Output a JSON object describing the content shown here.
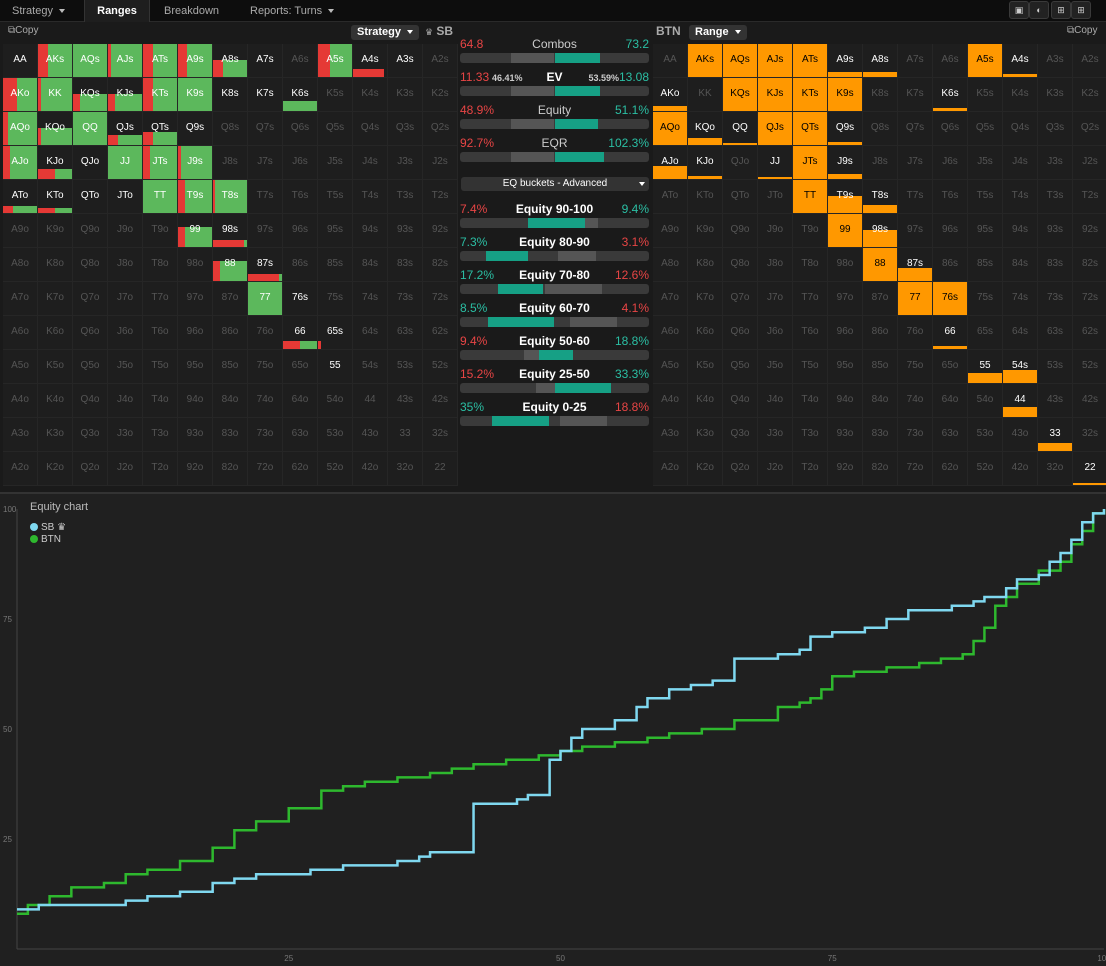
{
  "tabs": [
    {
      "label": "Strategy",
      "caret": true
    },
    {
      "label": "Ranges",
      "active": true
    },
    {
      "label": "Breakdown"
    },
    {
      "label": "Reports: Turns",
      "caret": true
    }
  ],
  "left": {
    "copy": "Copy",
    "dropdown": "Strategy",
    "player": "SB"
  },
  "right": {
    "copy": "Copy",
    "dropdown": "Range",
    "player": "BTN"
  },
  "crown_icon": "crown-icon",
  "colors": {
    "bet": "#5cb85c",
    "fold": "#e53935",
    "range": "#ff9800",
    "sb": "#7fd8f0",
    "btn": "#2eb82e",
    "teal": "#16a085"
  },
  "grid_labels": [
    [
      "AA",
      "AKs",
      "AQs",
      "AJs",
      "ATs",
      "A9s",
      "A8s",
      "A7s",
      "A6s",
      "A5s",
      "A4s",
      "A3s",
      "A2s"
    ],
    [
      "AKo",
      "KK",
      "KQs",
      "KJs",
      "KTs",
      "K9s",
      "K8s",
      "K7s",
      "K6s",
      "K5s",
      "K4s",
      "K3s",
      "K2s"
    ],
    [
      "AQo",
      "KQo",
      "QQ",
      "QJs",
      "QTs",
      "Q9s",
      "Q8s",
      "Q7s",
      "Q6s",
      "Q5s",
      "Q4s",
      "Q3s",
      "Q2s"
    ],
    [
      "AJo",
      "KJo",
      "QJo",
      "JJ",
      "JTs",
      "J9s",
      "J8s",
      "J7s",
      "J6s",
      "J5s",
      "J4s",
      "J3s",
      "J2s"
    ],
    [
      "ATo",
      "KTo",
      "QTo",
      "JTo",
      "TT",
      "T9s",
      "T8s",
      "T7s",
      "T6s",
      "T5s",
      "T4s",
      "T3s",
      "T2s"
    ],
    [
      "A9o",
      "K9o",
      "Q9o",
      "J9o",
      "T9o",
      "99",
      "98s",
      "97s",
      "96s",
      "95s",
      "94s",
      "93s",
      "92s"
    ],
    [
      "A8o",
      "K8o",
      "Q8o",
      "J8o",
      "T8o",
      "98o",
      "88",
      "87s",
      "86s",
      "85s",
      "84s",
      "83s",
      "82s"
    ],
    [
      "A7o",
      "K7o",
      "Q7o",
      "J7o",
      "T7o",
      "97o",
      "87o",
      "77",
      "76s",
      "75s",
      "74s",
      "73s",
      "72s"
    ],
    [
      "A6o",
      "K6o",
      "Q6o",
      "J6o",
      "T6o",
      "96o",
      "86o",
      "76o",
      "66",
      "65s",
      "64s",
      "63s",
      "62s"
    ],
    [
      "A5o",
      "K5o",
      "Q5o",
      "J5o",
      "T5o",
      "95o",
      "85o",
      "75o",
      "65o",
      "55",
      "54s",
      "53s",
      "52s"
    ],
    [
      "A4o",
      "K4o",
      "Q4o",
      "J4o",
      "T4o",
      "94o",
      "84o",
      "74o",
      "64o",
      "54o",
      "44",
      "43s",
      "42s"
    ],
    [
      "A3o",
      "K3o",
      "Q3o",
      "J3o",
      "T3o",
      "93o",
      "83o",
      "73o",
      "63o",
      "53o",
      "43o",
      "33",
      "32s"
    ],
    [
      "A2o",
      "K2o",
      "Q2o",
      "J2o",
      "T2o",
      "92o",
      "82o",
      "72o",
      "62o",
      "52o",
      "42o",
      "32o",
      "22"
    ]
  ],
  "sb_strategy": {
    "AA": [
      0.05,
      0.0,
      0.0
    ],
    "AKs": [
      1,
      0.3,
      0.8
    ],
    "AQs": [
      1,
      0.0,
      1.0
    ],
    "AJs": [
      1,
      0.1,
      1.0
    ],
    "ATs": [
      1,
      0.3,
      1.0
    ],
    "A9s": [
      1,
      0.25,
      1.0
    ],
    "A8s": [
      0.5,
      0.3,
      0.9
    ],
    "A7s": [
      0.15,
      0.0,
      0.0
    ],
    "A5s": [
      1,
      0.35,
      0.65
    ],
    "A4s": [
      0.25,
      0.9,
      0.0
    ],
    "A3s": [
      0.1,
      0.0,
      0.0
    ],
    "AKo": [
      1,
      0.4,
      0.6
    ],
    "KK": [
      1,
      0.1,
      1.0
    ],
    "KQs": [
      0.5,
      0.2,
      0.8
    ],
    "KJs": [
      0.5,
      0.2,
      0.6
    ],
    "KTs": [
      1,
      0.3,
      0.7
    ],
    "K9s": [
      1,
      0.0,
      1.0
    ],
    "K8s": [
      0.1,
      0.0,
      0.0
    ],
    "K7s": [
      0.15,
      0.0,
      0.0
    ],
    "K6s": [
      0.3,
      0.0,
      1.0
    ],
    "AQo": [
      1,
      0.15,
      0.85
    ],
    "KQo": [
      0.5,
      0.1,
      0.9
    ],
    "QQ": [
      1,
      0.0,
      1.0
    ],
    "QJs": [
      0.3,
      0.3,
      0.7
    ],
    "QTs": [
      0.4,
      0.3,
      0.7
    ],
    "Q9s": [
      0.1,
      0.0,
      0.0
    ],
    "AJo": [
      1,
      0.2,
      0.8
    ],
    "KJo": [
      0.3,
      0.5,
      0.5
    ],
    "QJo": [
      0,
      0,
      0
    ],
    "JJ": [
      1,
      0.0,
      1.0
    ],
    "JTs": [
      1,
      0.2,
      0.8
    ],
    "J9s": [
      1,
      0.1,
      0.9
    ],
    "ATo": [
      0.2,
      0.3,
      0.7
    ],
    "KTo": [
      0.15,
      0.5,
      0.5
    ],
    "QTo": [
      0,
      0,
      0
    ],
    "JTo": [
      0,
      0,
      0
    ],
    "TT": [
      1,
      0.0,
      1.0
    ],
    "T9s": [
      1,
      0.2,
      0.8
    ],
    "T8s": [
      1,
      0.05,
      0.95
    ],
    "99": [
      0.6,
      0.2,
      0.8
    ],
    "98s": [
      0.2,
      0.9,
      0.1
    ],
    "88": [
      0.6,
      0.2,
      0.8
    ],
    "87s": [
      0.2,
      0.9,
      0.1
    ],
    "77": [
      1,
      0.0,
      1.0
    ],
    "76s": [
      0,
      0,
      0
    ],
    "66": [
      0.25,
      0.5,
      0.5
    ],
    "65s": [
      0.25,
      0.1,
      0.0
    ],
    "55": [
      0,
      0,
      0
    ]
  },
  "btn_range": {
    "AKs": 1,
    "AQs": 1,
    "AJs": 1,
    "ATs": 1,
    "A9s": 0.15,
    "A8s": 0.15,
    "A5s": 1,
    "A4s": 0.08,
    "AKo": 0.15,
    "KQs": 1,
    "KJs": 1,
    "KTs": 1,
    "K9s": 1,
    "K6s": 0.08,
    "AQo": 1,
    "KQo": 0.2,
    "QQ": 0.03,
    "QJs": 1,
    "QTs": 1,
    "Q9s": 0.1,
    "AJo": 0.4,
    "KJo": 0.1,
    "JJ": 0.05,
    "JTs": 1,
    "J9s": 0.15,
    "TT": 1,
    "T9s": 0.5,
    "T8s": 0.25,
    "99": 1,
    "98s": 0.5,
    "88": 1,
    "87s": 0.4,
    "77": 1,
    "76s": 1,
    "66": 0.08,
    "55": 0.3,
    "54s": 0.4,
    "44": 0.3,
    "33": 0.25,
    "22": 0.05
  },
  "middle": {
    "combos": {
      "title": "Combos",
      "left": "64.8",
      "right": "73.2"
    },
    "ev": {
      "title": "EV",
      "left": "11.33",
      "left_pct": "46.41%",
      "right_pct": "53.59%",
      "right": "13.08"
    },
    "equity": {
      "title": "Equity",
      "left": "48.9%",
      "right": "51.1%"
    },
    "eqr": {
      "title": "EQR",
      "left": "92.7%",
      "right": "102.3%"
    },
    "buckets_select": "EQ buckets - Advanced",
    "buckets": [
      {
        "title": "Equity 90-100",
        "left": "7.4%",
        "right": "9.4%",
        "lcolor": "red",
        "rcolor": "teal"
      },
      {
        "title": "Equity 80-90",
        "left": "7.3%",
        "right": "3.1%",
        "lcolor": "teal",
        "rcolor": "red"
      },
      {
        "title": "Equity 70-80",
        "left": "17.2%",
        "right": "12.6%",
        "lcolor": "teal",
        "rcolor": "red"
      },
      {
        "title": "Equity 60-70",
        "left": "8.5%",
        "right": "4.1%",
        "lcolor": "teal",
        "rcolor": "red"
      },
      {
        "title": "Equity 50-60",
        "left": "9.4%",
        "right": "18.8%",
        "lcolor": "red",
        "rcolor": "teal"
      },
      {
        "title": "Equity 25-50",
        "left": "15.2%",
        "right": "33.3%",
        "lcolor": "red",
        "rcolor": "teal"
      },
      {
        "title": "Equity 0-25",
        "left": "35%",
        "right": "18.8%",
        "lcolor": "teal",
        "rcolor": "red"
      }
    ]
  },
  "chart_data": {
    "type": "line",
    "title": "Equity chart",
    "xlim": [
      0,
      100
    ],
    "ylim": [
      0,
      100
    ],
    "xticks": [
      25,
      50,
      75,
      100
    ],
    "yticks": [
      25,
      50,
      75,
      100
    ],
    "legend": "top-left",
    "series": [
      {
        "name": "SB",
        "color": "#7fd8f0",
        "x": [
          0,
          2,
          5,
          10,
          12,
          15,
          18,
          20,
          22,
          25,
          27,
          30,
          35,
          37,
          38,
          40,
          42,
          45,
          46,
          47,
          49,
          50,
          51,
          52,
          55,
          57,
          58,
          60,
          62,
          64,
          66,
          70,
          72,
          73,
          75,
          78,
          80,
          82,
          85,
          86,
          88,
          89,
          90,
          91,
          92,
          94,
          95,
          96,
          97,
          98,
          99,
          100
        ],
        "y": [
          9,
          10,
          10,
          11,
          12,
          13,
          15,
          16,
          17,
          17,
          18,
          19,
          20,
          21,
          22,
          22,
          33,
          33,
          34,
          35,
          43,
          45,
          48,
          50,
          52,
          55,
          57,
          59,
          60,
          61,
          66,
          67,
          68,
          71,
          72,
          73,
          75,
          77,
          77,
          78,
          79,
          80,
          80,
          82,
          84,
          85,
          88,
          90,
          93,
          97,
          99,
          100
        ]
      },
      {
        "name": "BTN",
        "color": "#2eb82e",
        "x": [
          0,
          1,
          3,
          5,
          8,
          10,
          12,
          15,
          18,
          20,
          22,
          25,
          28,
          30,
          32,
          35,
          38,
          40,
          42,
          45,
          48,
          50,
          52,
          55,
          58,
          60,
          63,
          66,
          70,
          72,
          73,
          74,
          75,
          77,
          80,
          83,
          85,
          87,
          88,
          89,
          90,
          91,
          92,
          94,
          96,
          97,
          98,
          99,
          100
        ],
        "y": [
          8,
          10,
          12,
          14,
          15,
          17,
          18,
          20,
          23,
          27,
          29,
          32,
          36,
          37,
          38,
          39,
          40,
          41,
          42,
          43,
          44,
          45,
          46,
          47,
          48,
          49,
          50,
          52,
          55,
          56,
          57,
          59,
          62,
          63,
          64,
          65,
          66,
          67,
          70,
          73,
          78,
          80,
          83,
          86,
          88,
          92,
          95,
          99,
          100
        ]
      }
    ]
  }
}
